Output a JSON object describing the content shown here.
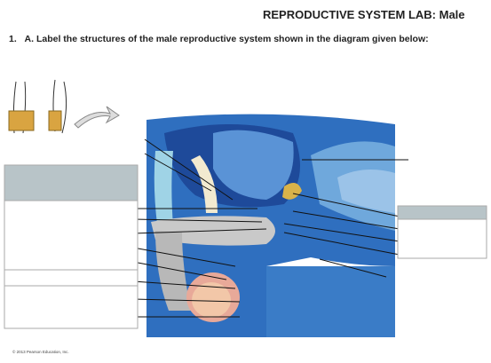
{
  "header": {
    "title": "REPRODUCTIVE SYSTEM LAB: Male",
    "question_number": "1.",
    "instruction": "A. Label the structures of the male reproductive system shown in the diagram given below:"
  },
  "footer": {
    "copyright": "© 2013 Pearson Education, Inc."
  }
}
